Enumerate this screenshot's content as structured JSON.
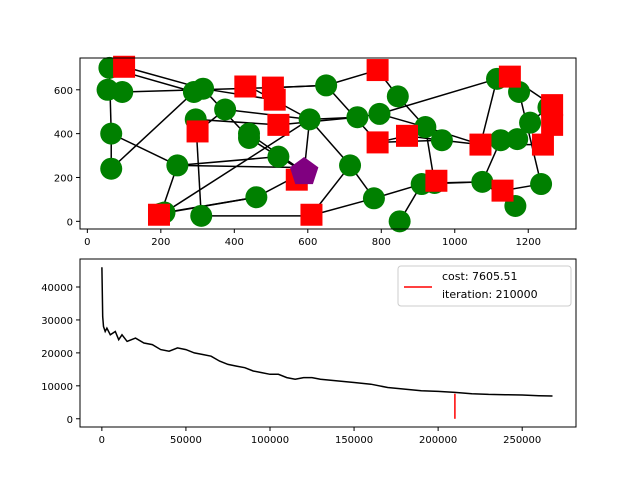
{
  "chart_data": [
    {
      "type": "scatter",
      "title": "",
      "xlabel": "",
      "ylabel": "",
      "xlim": [
        -20,
        1330
      ],
      "ylim": [
        -35,
        745
      ],
      "x_ticks": [
        0,
        200,
        400,
        600,
        800,
        1000,
        1200
      ],
      "y_ticks": [
        0,
        200,
        400,
        600
      ],
      "grid": false,
      "series": [
        {
          "marker": "circle",
          "color": "#008000",
          "points": [
            [
              60,
              700
            ],
            [
              55,
              600
            ],
            [
              95,
              590
            ],
            [
              65,
              400
            ],
            [
              65,
              240
            ],
            [
              245,
              255
            ],
            [
              210,
              40
            ],
            [
              200,
              35
            ],
            [
              310,
              25
            ],
            [
              290,
              590
            ],
            [
              315,
              605
            ],
            [
              295,
              465
            ],
            [
              375,
              510
            ],
            [
              440,
              400
            ],
            [
              440,
              380
            ],
            [
              520,
              295
            ],
            [
              460,
              110
            ],
            [
              605,
              465
            ],
            [
              650,
              620
            ],
            [
              735,
              475
            ],
            [
              795,
              490
            ],
            [
              715,
              255
            ],
            [
              845,
              570
            ],
            [
              780,
              105
            ],
            [
              850,
              0
            ],
            [
              910,
              170
            ],
            [
              920,
              430
            ],
            [
              965,
              370
            ],
            [
              945,
              175
            ],
            [
              1075,
              180
            ],
            [
              1115,
              650
            ],
            [
              1125,
              370
            ],
            [
              1170,
              375
            ],
            [
              1175,
              590
            ],
            [
              1205,
              450
            ],
            [
              1255,
              520
            ],
            [
              1235,
              170
            ],
            [
              1165,
              70
            ]
          ]
        },
        {
          "marker": "square",
          "color": "#ff0000",
          "points": [
            [
              100,
              705
            ],
            [
              300,
              410
            ],
            [
              430,
              615
            ],
            [
              505,
              610
            ],
            [
              510,
              555
            ],
            [
              520,
              440
            ],
            [
              570,
              190
            ],
            [
              610,
              30
            ],
            [
              790,
              690
            ],
            [
              790,
              360
            ],
            [
              870,
              390
            ],
            [
              950,
              185
            ],
            [
              1070,
              350
            ],
            [
              1130,
              140
            ],
            [
              1150,
              660
            ],
            [
              1240,
              350
            ],
            [
              1265,
              440
            ],
            [
              1265,
              530
            ],
            [
              195,
              30
            ]
          ]
        },
        {
          "marker": "pentagon",
          "color": "#800080",
          "points": [
            [
              590,
              225
            ]
          ]
        }
      ],
      "edges": [
        [
          [
            60,
            700
          ],
          [
            290,
            590
          ]
        ],
        [
          [
            100,
            705
          ],
          [
            315,
            605
          ]
        ],
        [
          [
            55,
            600
          ],
          [
            95,
            590
          ]
        ],
        [
          [
            95,
            590
          ],
          [
            505,
            610
          ]
        ],
        [
          [
            60,
            700
          ],
          [
            65,
            400
          ]
        ],
        [
          [
            65,
            400
          ],
          [
            245,
            255
          ]
        ],
        [
          [
            65,
            240
          ],
          [
            290,
            590
          ]
        ],
        [
          [
            65,
            240
          ],
          [
            65,
            400
          ]
        ],
        [
          [
            245,
            255
          ],
          [
            600,
            245
          ]
        ],
        [
          [
            245,
            255
          ],
          [
            520,
            295
          ]
        ],
        [
          [
            200,
            35
          ],
          [
            245,
            255
          ]
        ],
        [
          [
            210,
            40
          ],
          [
            460,
            110
          ]
        ],
        [
          [
            210,
            40
          ],
          [
            605,
            465
          ]
        ],
        [
          [
            310,
            25
          ],
          [
            605,
            25
          ]
        ],
        [
          [
            300,
            410
          ],
          [
            375,
            510
          ]
        ],
        [
          [
            295,
            465
          ],
          [
            520,
            440
          ]
        ],
        [
          [
            295,
            465
          ],
          [
            310,
            25
          ]
        ],
        [
          [
            375,
            510
          ],
          [
            605,
            465
          ]
        ],
        [
          [
            315,
            605
          ],
          [
            440,
            380
          ]
        ],
        [
          [
            440,
            400
          ],
          [
            590,
            225
          ]
        ],
        [
          [
            440,
            380
          ],
          [
            520,
            295
          ]
        ],
        [
          [
            520,
            295
          ],
          [
            590,
            225
          ]
        ],
        [
          [
            460,
            110
          ],
          [
            590,
            225
          ]
        ],
        [
          [
            590,
            225
          ],
          [
            605,
            465
          ]
        ],
        [
          [
            605,
            465
          ],
          [
            735,
            475
          ]
        ],
        [
          [
            650,
            620
          ],
          [
            505,
            610
          ]
        ],
        [
          [
            650,
            620
          ],
          [
            790,
            690
          ]
        ],
        [
          [
            790,
            690
          ],
          [
            845,
            570
          ]
        ],
        [
          [
            845,
            570
          ],
          [
            920,
            430
          ]
        ],
        [
          [
            735,
            475
          ],
          [
            795,
            490
          ]
        ],
        [
          [
            795,
            490
          ],
          [
            920,
            430
          ]
        ],
        [
          [
            715,
            255
          ],
          [
            605,
            465
          ]
        ],
        [
          [
            715,
            255
          ],
          [
            780,
            105
          ]
        ],
        [
          [
            790,
            360
          ],
          [
            965,
            370
          ]
        ],
        [
          [
            790,
            360
          ],
          [
            870,
            390
          ]
        ],
        [
          [
            870,
            390
          ],
          [
            965,
            370
          ]
        ],
        [
          [
            965,
            370
          ],
          [
            1070,
            350
          ]
        ],
        [
          [
            920,
            430
          ],
          [
            945,
            175
          ]
        ],
        [
          [
            945,
            175
          ],
          [
            1075,
            180
          ]
        ],
        [
          [
            1075,
            180
          ],
          [
            1125,
            370
          ]
        ],
        [
          [
            1125,
            370
          ],
          [
            1170,
            375
          ]
        ],
        [
          [
            1170,
            375
          ],
          [
            1205,
            450
          ]
        ],
        [
          [
            1205,
            450
          ],
          [
            1255,
            520
          ]
        ],
        [
          [
            1255,
            520
          ],
          [
            1265,
            440
          ]
        ],
        [
          [
            1115,
            650
          ],
          [
            1175,
            590
          ]
        ],
        [
          [
            1115,
            650
          ],
          [
            1070,
            350
          ]
        ],
        [
          [
            1175,
            590
          ],
          [
            1235,
            170
          ]
        ],
        [
          [
            1235,
            170
          ],
          [
            1130,
            140
          ]
        ],
        [
          [
            1130,
            140
          ],
          [
            1165,
            70
          ]
        ],
        [
          [
            1165,
            70
          ],
          [
            1075,
            180
          ]
        ],
        [
          [
            850,
            0
          ],
          [
            910,
            170
          ]
        ],
        [
          [
            780,
            105
          ],
          [
            910,
            170
          ]
        ],
        [
          [
            910,
            170
          ],
          [
            1075,
            180
          ]
        ],
        [
          [
            605,
            25
          ],
          [
            780,
            105
          ]
        ],
        [
          [
            610,
            30
          ],
          [
            715,
            255
          ]
        ],
        [
          [
            520,
            440
          ],
          [
            735,
            475
          ]
        ],
        [
          [
            505,
            610
          ],
          [
            650,
            620
          ]
        ],
        [
          [
            440,
            615
          ],
          [
            605,
            465
          ]
        ],
        [
          [
            1150,
            660
          ],
          [
            1265,
            530
          ]
        ],
        [
          [
            1240,
            350
          ],
          [
            1070,
            350
          ]
        ],
        [
          [
            790,
            360
          ],
          [
            650,
            620
          ]
        ],
        [
          [
            315,
            605
          ],
          [
            505,
            555
          ]
        ],
        [
          [
            200,
            35
          ],
          [
            460,
            110
          ]
        ],
        [
          [
            795,
            490
          ],
          [
            1115,
            650
          ]
        ],
        [
          [
            920,
            430
          ],
          [
            1070,
            350
          ]
        ]
      ]
    },
    {
      "type": "line",
      "title": "",
      "xlabel": "",
      "ylabel": "",
      "xlim": [
        -13000,
        282000
      ],
      "ylim": [
        -2500,
        48500
      ],
      "x_ticks": [
        0,
        50000,
        100000,
        150000,
        200000,
        250000
      ],
      "y_ticks": [
        0,
        10000,
        20000,
        30000,
        40000
      ],
      "grid": false,
      "legend_position": "upper right",
      "series": [
        {
          "color": "#000000",
          "x": [
            0,
            500,
            1000,
            2000,
            3000,
            5000,
            8000,
            10000,
            12000,
            15000,
            20000,
            25000,
            30000,
            35000,
            40000,
            45000,
            50000,
            55000,
            60000,
            65000,
            70000,
            75000,
            80000,
            85000,
            90000,
            95000,
            100000,
            105000,
            110000,
            115000,
            120000,
            125000,
            130000,
            140000,
            150000,
            160000,
            170000,
            180000,
            190000,
            200000,
            210000,
            220000,
            230000,
            240000,
            250000,
            260000,
            268000
          ],
          "y": [
            46000,
            31000,
            28000,
            26500,
            27500,
            25500,
            26500,
            24000,
            25500,
            23500,
            24500,
            23000,
            22500,
            21000,
            20500,
            21500,
            21000,
            20000,
            19500,
            19000,
            17500,
            16500,
            16000,
            15500,
            14500,
            14000,
            13500,
            13500,
            12500,
            12000,
            12500,
            12500,
            12000,
            11500,
            11000,
            10500,
            9500,
            9000,
            8500,
            8300,
            8000,
            7600,
            7400,
            7300,
            7200,
            7000,
            6900
          ]
        },
        {
          "color": "#ff0000",
          "x": [
            210000,
            210000
          ],
          "y": [
            0,
            7605.51
          ]
        }
      ],
      "legend": {
        "cost_label": "cost: 7605.51",
        "iteration_label": "iteration: 210000"
      }
    }
  ]
}
